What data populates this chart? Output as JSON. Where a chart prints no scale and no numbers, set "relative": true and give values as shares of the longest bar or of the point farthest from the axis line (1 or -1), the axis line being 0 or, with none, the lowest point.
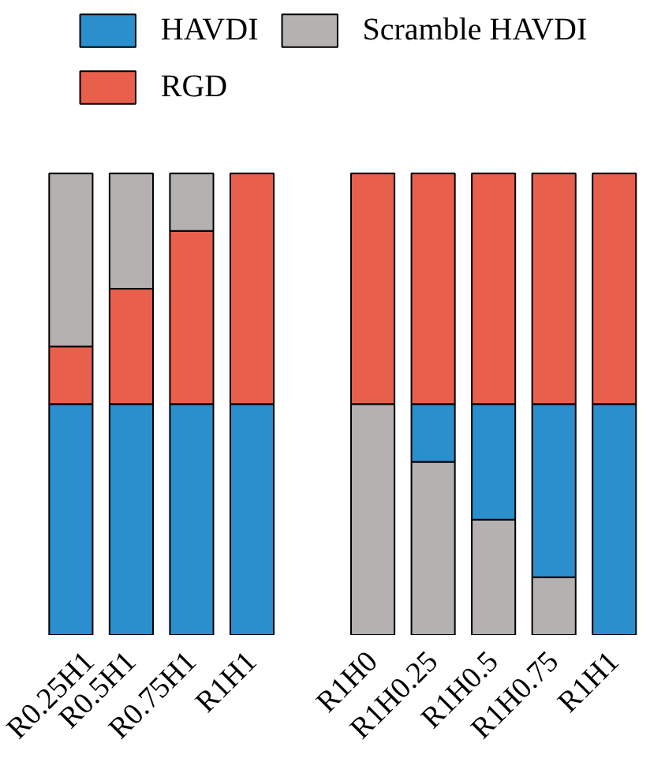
{
  "chart_data": [
    {
      "type": "bar",
      "stacked": true,
      "relative": true,
      "legend": "top",
      "categories": [
        "R0.25H1",
        "R0.5H1",
        "R0.75H1",
        "R1H1"
      ],
      "series": [
        {
          "name": "HAVDI",
          "color": "#2a8fcc",
          "values": [
            0.5,
            0.5,
            0.5,
            0.5
          ]
        },
        {
          "name": "RGD",
          "color": "#e8604c",
          "values": [
            0.125,
            0.25,
            0.375,
            0.5
          ]
        },
        {
          "name": "Scramble HAVDI",
          "color": "#b5b1b1",
          "values": [
            0.375,
            0.25,
            0.125,
            null
          ]
        }
      ]
    },
    {
      "type": "bar",
      "stacked": true,
      "relative": true,
      "categories": [
        "R1H0",
        "R1H0.25",
        "R1H0.5",
        "R1H0.75",
        "R1H1"
      ],
      "series": [
        {
          "color": "#b5b1b1",
          "values": [
            0.5,
            0.375,
            0.25,
            0.125,
            null
          ]
        },
        {
          "color": "#2a8fcc",
          "values": [
            null,
            0.125,
            0.25,
            0.375,
            0.5
          ]
        },
        {
          "color": "#e8604c",
          "values": [
            0.5,
            0.5,
            0.5,
            0.5,
            0.5
          ]
        }
      ]
    }
  ]
}
